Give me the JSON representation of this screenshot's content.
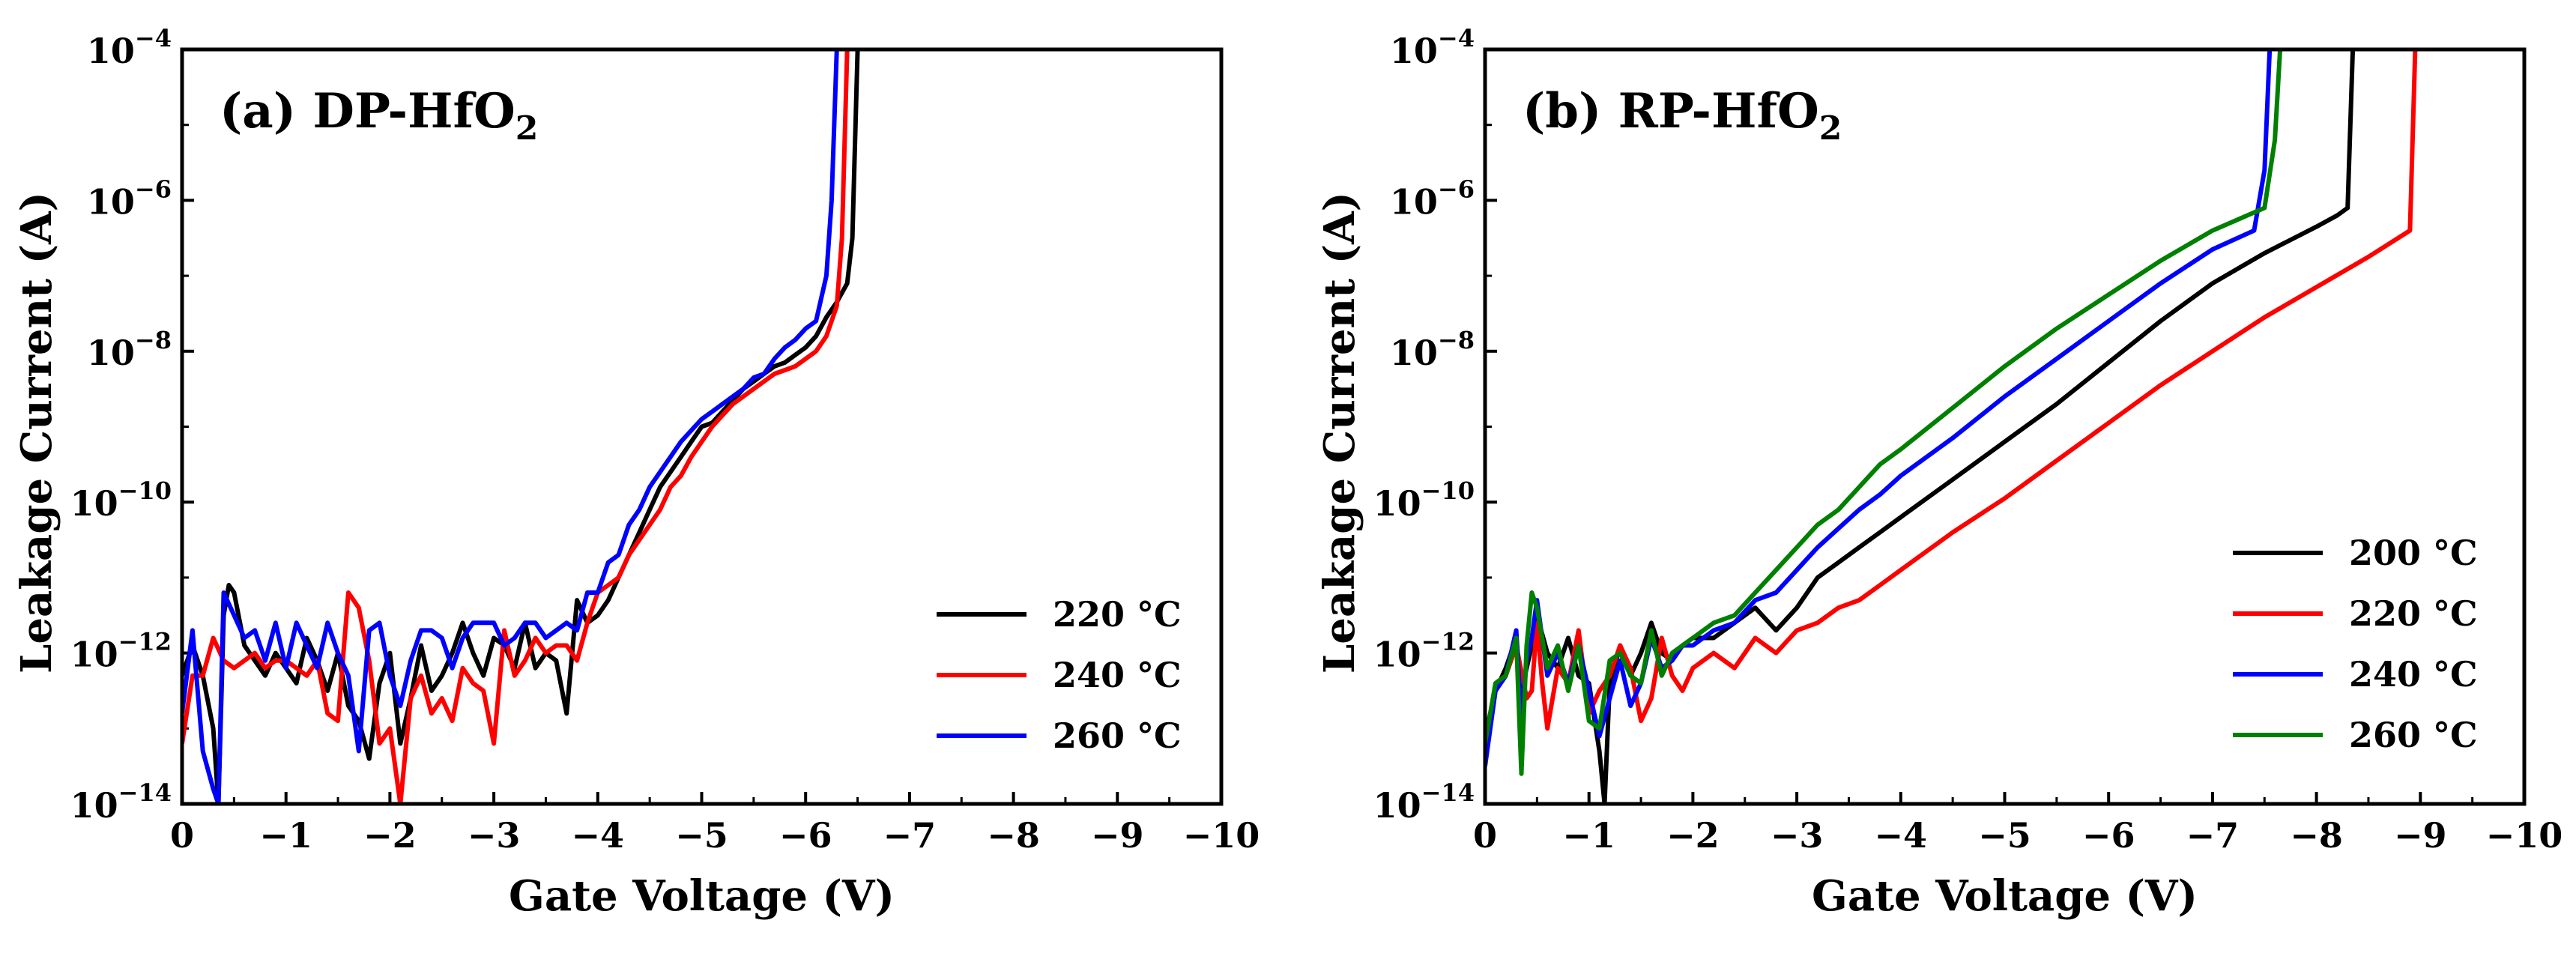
{
  "chart_data": [
    {
      "type": "line",
      "panel_label": "(a) DP-HfO",
      "panel_subscript": "2",
      "xlabel": "Gate Voltage (V)",
      "ylabel": "Leakage Current (A)",
      "xlim": [
        0,
        -10
      ],
      "ylim_exponent": [
        -14,
        -4
      ],
      "yscale": "log",
      "x_tick_labels": [
        "0",
        "−1",
        "−2",
        "−3",
        "−4",
        "−5",
        "−6",
        "−7",
        "−8",
        "−9",
        "−10"
      ],
      "y_tick_base": "10",
      "y_tick_exponents": [
        "−14",
        "−12",
        "−10",
        "−8",
        "−6",
        "−4"
      ],
      "legend_position": "bottom-right",
      "series": [
        {
          "name": "220 °C",
          "color": "#000000",
          "x": [
            0,
            -0.1,
            -0.2,
            -0.3,
            -0.35,
            -0.4,
            -0.45,
            -0.5,
            -0.6,
            -0.7,
            -0.8,
            -0.9,
            -1.0,
            -1.1,
            -1.2,
            -1.3,
            -1.4,
            -1.5,
            -1.6,
            -1.7,
            -1.8,
            -1.9,
            -2.0,
            -2.1,
            -2.2,
            -2.3,
            -2.4,
            -2.5,
            -2.6,
            -2.7,
            -2.8,
            -2.9,
            -3.0,
            -3.1,
            -3.2,
            -3.3,
            -3.4,
            -3.5,
            -3.6,
            -3.7,
            -3.8,
            -3.9,
            -4.0,
            -4.1,
            -4.2,
            -4.3,
            -4.4,
            -4.5,
            -4.6,
            -4.7,
            -4.8,
            -4.9,
            -5.0,
            -5.1,
            -5.2,
            -5.3,
            -5.4,
            -5.5,
            -5.6,
            -5.7,
            -5.8,
            -5.9,
            -6.0,
            -6.1,
            -6.2,
            -6.3,
            -6.4,
            -6.45,
            -6.5
          ],
          "log10_y": [
            -12.3,
            -11.9,
            -12.3,
            -13.0,
            -14.0,
            -11.5,
            -11.1,
            -11.2,
            -11.9,
            -12.1,
            -12.3,
            -12.0,
            -12.2,
            -12.4,
            -11.8,
            -12.1,
            -12.5,
            -12.0,
            -12.7,
            -12.9,
            -13.4,
            -12.4,
            -12.0,
            -13.2,
            -12.6,
            -11.9,
            -12.5,
            -12.3,
            -12.0,
            -11.6,
            -12.0,
            -12.3,
            -11.8,
            -11.9,
            -12.2,
            -11.6,
            -12.2,
            -12.0,
            -12.1,
            -12.8,
            -11.3,
            -11.6,
            -11.5,
            -11.3,
            -11.0,
            -10.7,
            -10.4,
            -10.1,
            -9.8,
            -9.6,
            -9.4,
            -9.2,
            -9.0,
            -8.95,
            -8.8,
            -8.65,
            -8.5,
            -8.4,
            -8.3,
            -8.2,
            -8.15,
            -8.05,
            -7.95,
            -7.8,
            -7.55,
            -7.35,
            -7.1,
            -6.5,
            -4.0
          ]
        },
        {
          "name": "240 °C",
          "color": "#ff0000",
          "x": [
            0,
            -0.1,
            -0.2,
            -0.3,
            -0.4,
            -0.5,
            -0.6,
            -0.7,
            -0.8,
            -0.9,
            -1.0,
            -1.1,
            -1.2,
            -1.3,
            -1.4,
            -1.5,
            -1.6,
            -1.7,
            -1.8,
            -1.9,
            -2.0,
            -2.1,
            -2.2,
            -2.3,
            -2.4,
            -2.5,
            -2.6,
            -2.7,
            -2.8,
            -2.9,
            -3.0,
            -3.1,
            -3.2,
            -3.3,
            -3.4,
            -3.5,
            -3.6,
            -3.7,
            -3.8,
            -3.9,
            -4.0,
            -4.1,
            -4.2,
            -4.3,
            -4.4,
            -4.5,
            -4.6,
            -4.7,
            -4.8,
            -4.9,
            -5.0,
            -5.1,
            -5.2,
            -5.3,
            -5.4,
            -5.5,
            -5.6,
            -5.7,
            -5.8,
            -5.9,
            -6.0,
            -6.1,
            -6.2,
            -6.3,
            -6.35,
            -6.4
          ],
          "log10_y": [
            -13.2,
            -12.3,
            -12.3,
            -11.8,
            -12.1,
            -12.2,
            -12.1,
            -12.0,
            -12.2,
            -12.1,
            -12.1,
            -12.2,
            -12.3,
            -12.1,
            -12.8,
            -12.9,
            -11.2,
            -11.4,
            -12.1,
            -13.2,
            -13.0,
            -14.0,
            -12.6,
            -12.3,
            -12.8,
            -12.6,
            -12.9,
            -12.2,
            -12.4,
            -12.5,
            -13.2,
            -11.7,
            -12.3,
            -12.1,
            -11.8,
            -12.0,
            -11.9,
            -11.9,
            -12.1,
            -11.6,
            -11.2,
            -11.1,
            -11.0,
            -10.7,
            -10.5,
            -10.3,
            -10.1,
            -9.8,
            -9.65,
            -9.4,
            -9.2,
            -9.0,
            -8.85,
            -8.7,
            -8.6,
            -8.5,
            -8.4,
            -8.3,
            -8.25,
            -8.2,
            -8.1,
            -8.0,
            -7.8,
            -7.4,
            -6.5,
            -4.0
          ]
        },
        {
          "name": "260 °C",
          "color": "#0000ff",
          "x": [
            0,
            -0.1,
            -0.2,
            -0.3,
            -0.35,
            -0.4,
            -0.5,
            -0.6,
            -0.7,
            -0.8,
            -0.9,
            -1.0,
            -1.1,
            -1.2,
            -1.3,
            -1.4,
            -1.5,
            -1.6,
            -1.7,
            -1.8,
            -1.9,
            -2.0,
            -2.1,
            -2.2,
            -2.3,
            -2.4,
            -2.5,
            -2.6,
            -2.7,
            -2.8,
            -2.9,
            -3.0,
            -3.1,
            -3.2,
            -3.3,
            -3.4,
            -3.5,
            -3.6,
            -3.7,
            -3.8,
            -3.9,
            -4.0,
            -4.1,
            -4.2,
            -4.3,
            -4.4,
            -4.5,
            -4.6,
            -4.7,
            -4.8,
            -4.9,
            -5.0,
            -5.1,
            -5.2,
            -5.3,
            -5.4,
            -5.5,
            -5.6,
            -5.7,
            -5.8,
            -5.9,
            -6.0,
            -6.1,
            -6.2,
            -6.25,
            -6.3
          ],
          "log10_y": [
            -12.8,
            -11.7,
            -13.3,
            -13.8,
            -14.0,
            -11.2,
            -11.5,
            -11.8,
            -11.7,
            -12.1,
            -11.6,
            -12.2,
            -11.6,
            -11.9,
            -12.2,
            -11.6,
            -12.0,
            -12.3,
            -13.3,
            -11.7,
            -11.6,
            -12.3,
            -12.7,
            -12.1,
            -11.7,
            -11.7,
            -11.8,
            -12.2,
            -11.8,
            -11.6,
            -11.6,
            -11.6,
            -11.9,
            -11.8,
            -11.6,
            -11.6,
            -11.8,
            -11.7,
            -11.6,
            -11.7,
            -11.2,
            -11.2,
            -10.8,
            -10.7,
            -10.3,
            -10.1,
            -9.8,
            -9.6,
            -9.4,
            -9.2,
            -9.05,
            -8.9,
            -8.8,
            -8.7,
            -8.6,
            -8.5,
            -8.35,
            -8.3,
            -8.1,
            -7.95,
            -7.85,
            -7.7,
            -7.6,
            -7.0,
            -6.0,
            -4.0
          ]
        }
      ]
    },
    {
      "type": "line",
      "panel_label": "(b) RP-HfO",
      "panel_subscript": "2",
      "xlabel": "Gate Voltage (V)",
      "ylabel": "Leakage Current (A)",
      "xlim": [
        0,
        -10
      ],
      "ylim_exponent": [
        -14,
        -4
      ],
      "yscale": "log",
      "x_tick_labels": [
        "0",
        "−1",
        "−2",
        "−3",
        "−4",
        "−5",
        "−6",
        "−7",
        "−8",
        "−9",
        "−10"
      ],
      "y_tick_base": "10",
      "y_tick_exponents": [
        "−14",
        "−12",
        "−10",
        "−8",
        "−6",
        "−4"
      ],
      "legend_position": "bottom-right",
      "series": [
        {
          "name": "200 °C",
          "color": "#000000",
          "x": [
            0,
            -0.1,
            -0.2,
            -0.3,
            -0.35,
            -0.4,
            -0.45,
            -0.5,
            -0.6,
            -0.7,
            -0.8,
            -0.9,
            -1.0,
            -1.1,
            -1.15,
            -1.2,
            -1.3,
            -1.4,
            -1.5,
            -1.6,
            -1.7,
            -1.8,
            -1.9,
            -2.0,
            -2.2,
            -2.4,
            -2.6,
            -2.8,
            -3.0,
            -3.2,
            -3.4,
            -3.6,
            -3.8,
            -4.0,
            -4.5,
            -5.0,
            -5.5,
            -6.0,
            -6.5,
            -7.0,
            -7.5,
            -8.0,
            -8.2,
            -8.3,
            -8.35
          ],
          "log10_y": [
            -13.1,
            -12.5,
            -12.2,
            -11.8,
            -12.5,
            -12.2,
            -11.9,
            -11.5,
            -12.0,
            -12.2,
            -11.8,
            -12.3,
            -12.4,
            -13.3,
            -14.0,
            -12.4,
            -11.9,
            -12.3,
            -12.0,
            -11.6,
            -12.0,
            -12.1,
            -11.9,
            -11.8,
            -11.8,
            -11.6,
            -11.4,
            -11.7,
            -11.4,
            -11.0,
            -10.8,
            -10.6,
            -10.4,
            -10.2,
            -9.7,
            -9.2,
            -8.7,
            -8.15,
            -7.6,
            -7.1,
            -6.7,
            -6.35,
            -6.2,
            -6.1,
            -4.0
          ]
        },
        {
          "name": "220 °C",
          "color": "#ff0000",
          "x": [
            0,
            -0.1,
            -0.2,
            -0.3,
            -0.4,
            -0.45,
            -0.5,
            -0.55,
            -0.6,
            -0.7,
            -0.8,
            -0.9,
            -1.0,
            -1.1,
            -1.2,
            -1.3,
            -1.4,
            -1.5,
            -1.6,
            -1.7,
            -1.8,
            -1.9,
            -2.0,
            -2.2,
            -2.4,
            -2.6,
            -2.8,
            -3.0,
            -3.2,
            -3.4,
            -3.6,
            -3.8,
            -4.0,
            -4.5,
            -5.0,
            -5.5,
            -6.0,
            -6.5,
            -7.0,
            -7.5,
            -8.0,
            -8.5,
            -8.9,
            -8.95
          ],
          "log10_y": [
            -13.1,
            -12.5,
            -12.3,
            -11.9,
            -12.6,
            -12.5,
            -11.6,
            -12.4,
            -13.0,
            -12.2,
            -12.4,
            -11.7,
            -12.8,
            -12.5,
            -12.3,
            -11.9,
            -12.2,
            -12.9,
            -12.6,
            -11.8,
            -12.3,
            -12.5,
            -12.2,
            -12.0,
            -12.2,
            -11.8,
            -12.0,
            -11.7,
            -11.6,
            -11.4,
            -11.3,
            -11.1,
            -10.9,
            -10.4,
            -9.95,
            -9.45,
            -8.95,
            -8.45,
            -8.0,
            -7.55,
            -7.15,
            -6.75,
            -6.4,
            -4.0
          ]
        },
        {
          "name": "240 °C",
          "color": "#0000ff",
          "x": [
            0,
            -0.1,
            -0.2,
            -0.3,
            -0.35,
            -0.4,
            -0.45,
            -0.5,
            -0.6,
            -0.7,
            -0.8,
            -0.9,
            -1.0,
            -1.1,
            -1.2,
            -1.3,
            -1.4,
            -1.5,
            -1.6,
            -1.7,
            -1.8,
            -1.9,
            -2.0,
            -2.2,
            -2.4,
            -2.6,
            -2.8,
            -3.0,
            -3.2,
            -3.4,
            -3.6,
            -3.8,
            -4.0,
            -4.5,
            -5.0,
            -5.5,
            -6.0,
            -6.5,
            -7.0,
            -7.4,
            -7.5,
            -7.55
          ],
          "log10_y": [
            -13.5,
            -12.5,
            -12.3,
            -11.7,
            -12.9,
            -12.1,
            -11.8,
            -11.3,
            -12.3,
            -12.0,
            -12.4,
            -11.9,
            -12.5,
            -13.1,
            -12.6,
            -12.1,
            -12.7,
            -12.4,
            -11.8,
            -12.2,
            -12.1,
            -11.9,
            -11.9,
            -11.7,
            -11.6,
            -11.3,
            -11.2,
            -10.9,
            -10.6,
            -10.35,
            -10.1,
            -9.9,
            -9.65,
            -9.15,
            -8.6,
            -8.1,
            -7.6,
            -7.1,
            -6.65,
            -6.4,
            -5.6,
            -4.0
          ]
        },
        {
          "name": "260 °C",
          "color": "#008000",
          "x": [
            0,
            -0.1,
            -0.2,
            -0.3,
            -0.35,
            -0.4,
            -0.45,
            -0.5,
            -0.6,
            -0.7,
            -0.8,
            -0.9,
            -1.0,
            -1.1,
            -1.2,
            -1.3,
            -1.4,
            -1.5,
            -1.6,
            -1.7,
            -1.8,
            -1.9,
            -2.0,
            -2.2,
            -2.4,
            -2.6,
            -2.8,
            -3.0,
            -3.2,
            -3.4,
            -3.6,
            -3.8,
            -4.0,
            -4.5,
            -5.0,
            -5.5,
            -6.0,
            -6.5,
            -7.0,
            -7.5,
            -7.6,
            -7.65
          ],
          "log10_y": [
            -13.2,
            -12.4,
            -12.3,
            -11.8,
            -13.6,
            -11.9,
            -11.2,
            -11.4,
            -12.2,
            -11.9,
            -12.5,
            -11.9,
            -12.9,
            -13.0,
            -12.1,
            -12.0,
            -12.3,
            -12.4,
            -11.7,
            -12.3,
            -12.0,
            -11.9,
            -11.8,
            -11.6,
            -11.5,
            -11.2,
            -10.9,
            -10.6,
            -10.3,
            -10.1,
            -9.8,
            -9.5,
            -9.3,
            -8.75,
            -8.2,
            -7.7,
            -7.25,
            -6.8,
            -6.4,
            -6.1,
            -5.2,
            -4.0
          ]
        }
      ]
    }
  ]
}
